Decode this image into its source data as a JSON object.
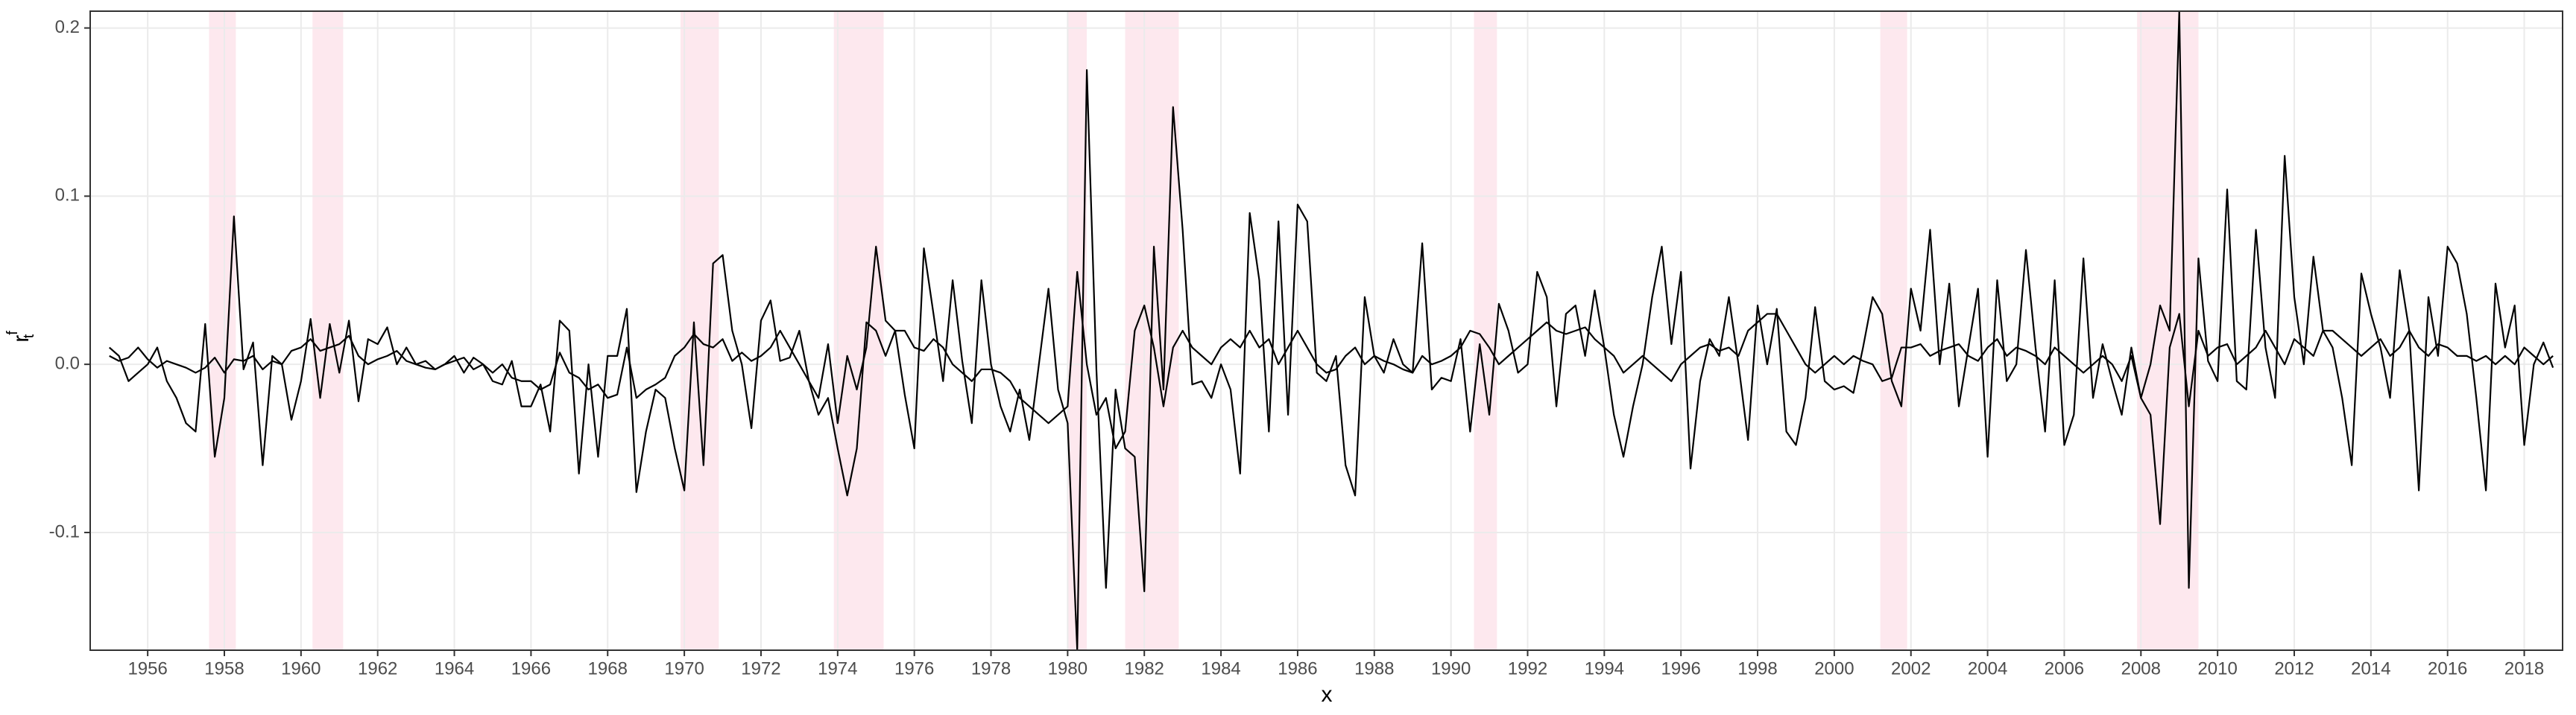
{
  "chart_data": {
    "type": "line",
    "x_label": "x",
    "y_label": {
      "base": "r",
      "sup": "f",
      "sub": "t"
    },
    "xlim": [
      1954.5,
      2019.0
    ],
    "ylim": [
      -0.17,
      0.21
    ],
    "xticks": [
      1956,
      1958,
      1960,
      1962,
      1964,
      1966,
      1968,
      1970,
      1972,
      1974,
      1976,
      1978,
      1980,
      1982,
      1984,
      1986,
      1988,
      1990,
      1992,
      1994,
      1996,
      1998,
      2000,
      2002,
      2004,
      2006,
      2008,
      2010,
      2012,
      2014,
      2016,
      2018
    ],
    "yticks": [
      -0.1,
      {
        "value": 0,
        "label": "0.0"
      },
      0.1,
      0.2
    ],
    "grid": true,
    "recession_color": "#fde8ee",
    "recessions": [
      [
        1957.6,
        1958.3
      ],
      [
        1960.3,
        1961.1
      ],
      [
        1969.9,
        1970.9
      ],
      [
        1973.9,
        1975.2
      ],
      [
        1980.0,
        1980.5
      ],
      [
        1981.5,
        1982.9
      ],
      [
        1990.6,
        1991.2
      ],
      [
        2001.2,
        2001.9
      ],
      [
        2007.9,
        2009.5
      ]
    ],
    "x": [
      1955,
      1955.25,
      1955.5,
      1955.75,
      1956,
      1956.25,
      1956.5,
      1956.75,
      1957,
      1957.25,
      1957.5,
      1957.75,
      1958,
      1958.25,
      1958.5,
      1958.75,
      1959,
      1959.25,
      1959.5,
      1959.75,
      1960,
      1960.25,
      1960.5,
      1960.75,
      1961,
      1961.25,
      1961.5,
      1961.75,
      1962,
      1962.25,
      1962.5,
      1962.75,
      1963,
      1963.25,
      1963.5,
      1963.75,
      1964,
      1964.25,
      1964.5,
      1964.75,
      1965,
      1965.25,
      1965.5,
      1965.75,
      1966,
      1966.25,
      1966.5,
      1966.75,
      1967,
      1967.25,
      1967.5,
      1967.75,
      1968,
      1968.25,
      1968.5,
      1968.75,
      1969,
      1969.25,
      1969.5,
      1969.75,
      1970,
      1970.25,
      1970.5,
      1970.75,
      1971,
      1971.25,
      1971.5,
      1971.75,
      1972,
      1972.25,
      1972.5,
      1972.75,
      1973,
      1973.25,
      1973.5,
      1973.75,
      1974,
      1974.25,
      1974.5,
      1974.75,
      1975,
      1975.25,
      1975.5,
      1975.75,
      1976,
      1976.25,
      1976.5,
      1976.75,
      1977,
      1977.25,
      1977.5,
      1977.75,
      1978,
      1978.25,
      1978.5,
      1978.75,
      1979,
      1979.25,
      1979.5,
      1979.75,
      1980,
      1980.25,
      1980.5,
      1980.75,
      1981,
      1981.25,
      1981.5,
      1981.75,
      1982,
      1982.25,
      1982.5,
      1982.75,
      1983,
      1983.25,
      1983.5,
      1983.75,
      1984,
      1984.25,
      1984.5,
      1984.75,
      1985,
      1985.25,
      1985.5,
      1985.75,
      1986,
      1986.25,
      1986.5,
      1986.75,
      1987,
      1987.25,
      1987.5,
      1987.75,
      1988,
      1988.25,
      1988.5,
      1988.75,
      1989,
      1989.25,
      1989.5,
      1989.75,
      1990,
      1990.25,
      1990.5,
      1990.75,
      1991,
      1991.25,
      1991.5,
      1991.75,
      1992,
      1992.25,
      1992.5,
      1992.75,
      1993,
      1993.25,
      1993.5,
      1993.75,
      1994,
      1994.25,
      1994.5,
      1994.75,
      1995,
      1995.25,
      1995.5,
      1995.75,
      1996,
      1996.25,
      1996.5,
      1996.75,
      1997,
      1997.25,
      1997.5,
      1997.75,
      1998,
      1998.25,
      1998.5,
      1998.75,
      1999,
      1999.25,
      1999.5,
      1999.75,
      2000,
      2000.25,
      2000.5,
      2000.75,
      2001,
      2001.25,
      2001.5,
      2001.75,
      2002,
      2002.25,
      2002.5,
      2002.75,
      2003,
      2003.25,
      2003.5,
      2003.75,
      2004,
      2004.25,
      2004.5,
      2004.75,
      2005,
      2005.25,
      2005.5,
      2005.75,
      2006,
      2006.25,
      2006.5,
      2006.75,
      2007,
      2007.25,
      2007.5,
      2007.75,
      2008,
      2008.25,
      2008.5,
      2008.75,
      2009,
      2009.25,
      2009.5,
      2009.75,
      2010,
      2010.25,
      2010.5,
      2010.75,
      2011,
      2011.25,
      2011.5,
      2011.75,
      2012,
      2012.25,
      2012.5,
      2012.75,
      2013,
      2013.25,
      2013.5,
      2013.75,
      2014,
      2014.25,
      2014.5,
      2014.75,
      2015,
      2015.25,
      2015.5,
      2015.75,
      2016,
      2016.25,
      2016.5,
      2016.75,
      2017,
      2017.25,
      2017.5,
      2017.75,
      2018,
      2018.25,
      2018.5,
      2018.75
    ],
    "series": [
      {
        "color": "#000000",
        "values": [
          0.01,
          0.005,
          -0.01,
          -0.005,
          0.0,
          0.01,
          -0.01,
          -0.02,
          -0.035,
          -0.04,
          0.024,
          -0.055,
          -0.02,
          0.088,
          -0.003,
          0.013,
          -0.06,
          0.005,
          0.0,
          -0.033,
          -0.01,
          0.027,
          -0.02,
          0.024,
          -0.005,
          0.026,
          -0.022,
          0.015,
          0.012,
          0.022,
          0.0,
          0.01,
          0.0,
          -0.002,
          -0.003,
          0.0,
          0.005,
          -0.005,
          0.004,
          0.0,
          -0.01,
          -0.012,
          0.002,
          -0.025,
          -0.025,
          -0.012,
          -0.04,
          0.026,
          0.02,
          -0.065,
          0.0,
          -0.055,
          0.005,
          0.005,
          0.033,
          -0.076,
          -0.04,
          -0.015,
          -0.02,
          -0.05,
          -0.075,
          0.025,
          -0.06,
          0.06,
          0.065,
          0.02,
          0.0,
          -0.038,
          0.026,
          0.038,
          0.002,
          0.004,
          0.02,
          -0.01,
          -0.02,
          0.012,
          -0.035,
          0.005,
          -0.015,
          0.01,
          0.07,
          0.026,
          0.02,
          -0.018,
          -0.05,
          0.069,
          0.03,
          -0.01,
          0.05,
          0.002,
          -0.035,
          0.05,
          0.0,
          -0.025,
          -0.04,
          -0.015,
          -0.045,
          0.0,
          0.045,
          -0.015,
          -0.035,
          -0.17,
          0.175,
          -0.003,
          -0.133,
          -0.015,
          -0.05,
          -0.055,
          -0.135,
          0.07,
          -0.015,
          0.153,
          0.08,
          -0.012,
          -0.01,
          -0.02,
          0.0,
          -0.015,
          -0.065,
          0.09,
          0.05,
          -0.04,
          0.085,
          -0.03,
          0.095,
          0.085,
          -0.005,
          -0.01,
          0.005,
          -0.06,
          -0.078,
          0.04,
          0.005,
          -0.005,
          0.015,
          0.0,
          -0.005,
          0.072,
          -0.015,
          -0.008,
          -0.01,
          0.015,
          -0.04,
          0.012,
          -0.03,
          0.036,
          0.02,
          -0.005,
          0.0,
          0.055,
          0.04,
          -0.025,
          0.03,
          0.035,
          0.005,
          0.044,
          0.01,
          -0.03,
          -0.055,
          -0.025,
          0.0,
          0.04,
          0.07,
          0.012,
          0.055,
          -0.062,
          -0.01,
          0.015,
          0.005,
          0.04,
          0.0,
          -0.045,
          0.035,
          0.0,
          0.033,
          -0.04,
          -0.048,
          -0.02,
          0.034,
          -0.01,
          -0.015,
          -0.013,
          -0.017,
          0.01,
          0.04,
          0.03,
          -0.01,
          -0.025,
          0.045,
          0.02,
          0.08,
          0.0,
          0.048,
          -0.025,
          0.01,
          0.045,
          -0.055,
          0.05,
          -0.01,
          0.0,
          0.068,
          0.01,
          -0.04,
          0.05,
          -0.048,
          -0.03,
          0.063,
          -0.02,
          0.012,
          -0.01,
          -0.03,
          0.01,
          -0.02,
          0.0,
          0.035,
          0.02,
          0.21,
          -0.133,
          0.063,
          0.002,
          -0.01,
          0.104,
          -0.01,
          -0.015,
          0.08,
          0.01,
          -0.02,
          0.124,
          0.04,
          0.0,
          0.064,
          0.02,
          0.01,
          -0.02,
          -0.06,
          0.054,
          0.03,
          0.01,
          -0.02,
          0.056,
          0.02,
          -0.075,
          0.04,
          0.005,
          0.07,
          0.06,
          0.03,
          -0.02,
          -0.075,
          0.048,
          0.01,
          0.035,
          -0.048,
          0.0,
          0.013,
          -0.002
        ]
      },
      {
        "color": "#000000",
        "values": [
          0.005,
          0.002,
          0.004,
          0.01,
          0.003,
          -0.002,
          0.002,
          0.0,
          -0.002,
          -0.005,
          -0.002,
          0.004,
          -0.005,
          0.003,
          0.002,
          0.005,
          -0.003,
          0.002,
          0.0,
          0.008,
          0.01,
          0.015,
          0.008,
          0.01,
          0.012,
          0.017,
          0.005,
          0.0,
          0.003,
          0.005,
          0.008,
          0.002,
          0.0,
          0.002,
          -0.003,
          0.0,
          0.002,
          0.004,
          -0.003,
          0.0,
          -0.005,
          0.0,
          -0.008,
          -0.01,
          -0.01,
          -0.015,
          -0.012,
          0.007,
          -0.005,
          -0.008,
          -0.015,
          -0.012,
          -0.02,
          -0.018,
          0.01,
          -0.02,
          -0.015,
          -0.012,
          -0.008,
          0.005,
          0.01,
          0.018,
          0.012,
          0.01,
          0.015,
          0.002,
          0.007,
          0.002,
          0.005,
          0.01,
          0.02,
          0.01,
          0.0,
          -0.01,
          -0.03,
          -0.02,
          -0.05,
          -0.078,
          -0.05,
          0.025,
          0.02,
          0.005,
          0.02,
          0.02,
          0.01,
          0.008,
          0.015,
          0.01,
          0.0,
          -0.005,
          -0.01,
          -0.003,
          -0.003,
          -0.005,
          -0.01,
          -0.02,
          -0.025,
          -0.03,
          -0.035,
          -0.03,
          -0.025,
          0.055,
          0.0,
          -0.03,
          -0.02,
          -0.05,
          -0.04,
          0.02,
          0.035,
          0.01,
          -0.025,
          0.01,
          0.02,
          0.01,
          0.005,
          0.0,
          0.01,
          0.015,
          0.01,
          0.02,
          0.01,
          0.015,
          0.0,
          0.01,
          0.02,
          0.01,
          0.0,
          -0.005,
          -0.003,
          0.005,
          0.01,
          0.0,
          0.005,
          0.002,
          0.0,
          -0.003,
          -0.005,
          0.005,
          0.0,
          0.002,
          0.005,
          0.01,
          0.02,
          0.018,
          0.01,
          0.0,
          0.005,
          0.01,
          0.015,
          0.02,
          0.025,
          0.02,
          0.018,
          0.02,
          0.022,
          0.015,
          0.01,
          0.005,
          -0.005,
          0.0,
          0.005,
          0.0,
          -0.005,
          -0.01,
          0.0,
          0.005,
          0.01,
          0.012,
          0.008,
          0.01,
          0.005,
          0.02,
          0.025,
          0.03,
          0.03,
          0.02,
          0.01,
          0.0,
          -0.005,
          0.0,
          0.005,
          0.0,
          0.005,
          0.002,
          0.0,
          -0.01,
          -0.008,
          0.01,
          0.01,
          0.012,
          0.005,
          0.008,
          0.01,
          0.012,
          0.005,
          0.002,
          0.01,
          0.015,
          0.005,
          0.01,
          0.008,
          0.005,
          0.0,
          0.01,
          0.005,
          0.0,
          -0.005,
          0.0,
          0.005,
          0.0,
          -0.01,
          0.005,
          -0.02,
          -0.03,
          -0.095,
          0.01,
          0.03,
          -0.025,
          0.02,
          0.005,
          0.01,
          0.012,
          0.0,
          0.005,
          0.01,
          0.02,
          0.01,
          0.0,
          0.015,
          0.01,
          0.005,
          0.02,
          0.02,
          0.015,
          0.01,
          0.005,
          0.01,
          0.015,
          0.005,
          0.01,
          0.02,
          0.01,
          0.005,
          0.012,
          0.01,
          0.005,
          0.005,
          0.002,
          0.005,
          0.0,
          0.005,
          0.0,
          0.01,
          0.005,
          0.0,
          0.005
        ]
      }
    ]
  }
}
